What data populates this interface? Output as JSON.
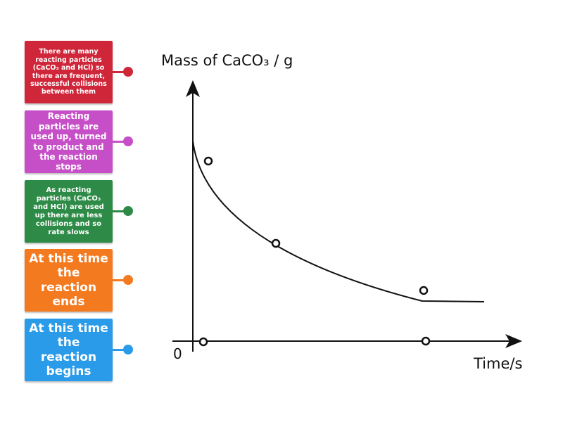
{
  "cards": [
    {
      "text": "There are many reacting particles (CaCO₃ and HCl) so there are frequent, successful collisions between them"
    },
    {
      "text": "Reacting particles are used up, turned to product and the reaction stops"
    },
    {
      "text": "As reacting particles (CaCO₃ and HCl) are used up there are less collisions and so rate slows"
    },
    {
      "text": "At this time the reaction ends"
    },
    {
      "text": "At this time the reaction begins"
    }
  ],
  "graph": {
    "y_label": "Mass of CaCO₃ / g",
    "x_label": "Time/s",
    "origin": "0"
  }
}
